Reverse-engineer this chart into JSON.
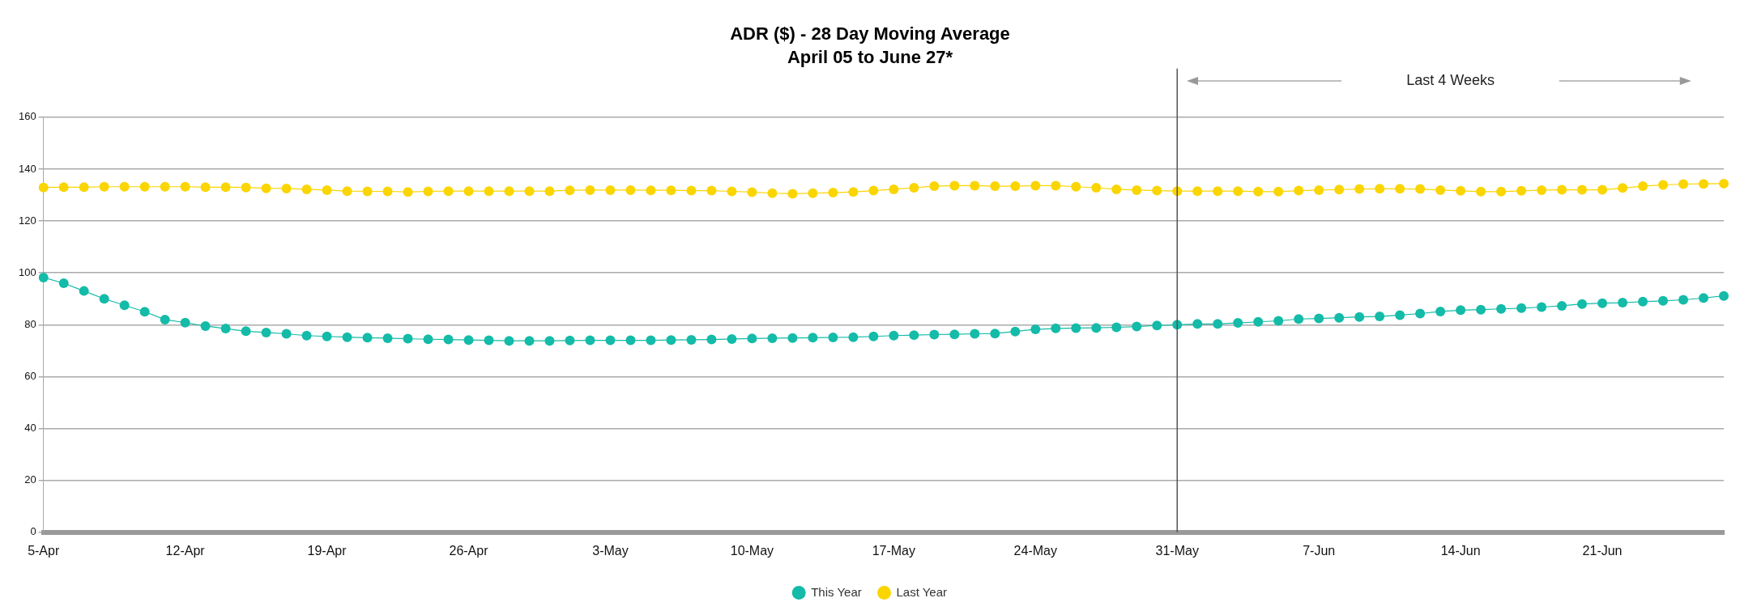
{
  "chart_data": {
    "type": "line",
    "title": "ADR ($) - 28 Day Moving Average",
    "subtitle": "April 05 to June 27*",
    "categories": [
      "5-Apr",
      null,
      null,
      null,
      null,
      null,
      null,
      "12-Apr",
      null,
      null,
      null,
      null,
      null,
      null,
      "19-Apr",
      null,
      null,
      null,
      null,
      null,
      null,
      "26-Apr",
      null,
      null,
      null,
      null,
      null,
      null,
      "3-May",
      null,
      null,
      null,
      null,
      null,
      null,
      "10-May",
      null,
      null,
      null,
      null,
      null,
      null,
      "17-May",
      null,
      null,
      null,
      null,
      null,
      null,
      "24-May",
      null,
      null,
      null,
      null,
      null,
      null,
      "31-May",
      null,
      null,
      null,
      null,
      null,
      null,
      "7-Jun",
      null,
      null,
      null,
      null,
      null,
      null,
      "14-Jun",
      null,
      null,
      null,
      null,
      null,
      null,
      "21-Jun",
      null,
      null,
      null,
      null,
      null,
      null
    ],
    "series": [
      {
        "name": "This Year",
        "color": "#13bba8",
        "values": [
          98.2,
          96,
          93,
          90,
          87.5,
          85,
          82,
          80.8,
          79.5,
          78.5,
          77.5,
          77,
          76.5,
          75.8,
          75.5,
          75.2,
          75,
          74.8,
          74.6,
          74.4,
          74.3,
          74.1,
          74,
          73.8,
          73.8,
          73.8,
          73.9,
          74,
          74,
          74,
          74,
          74.1,
          74.2,
          74.3,
          74.5,
          74.7,
          74.8,
          74.9,
          75,
          75.1,
          75.2,
          75.5,
          75.8,
          76,
          76.2,
          76.3,
          76.5,
          76.6,
          77.4,
          78.2,
          78.6,
          78.7,
          78.8,
          79,
          79.3,
          79.7,
          80,
          80.3,
          80.3,
          80.7,
          81.1,
          81.5,
          82.2,
          82.4,
          82.7,
          83,
          83.2,
          83.7,
          84.3,
          85.1,
          85.6,
          85.8,
          86.1,
          86.4,
          86.8,
          87.3,
          88,
          88.3,
          88.5,
          88.9,
          89.2,
          89.6,
          90.3,
          91.1
        ]
      },
      {
        "name": "Last Year",
        "color": "#fad500",
        "values": [
          132.9,
          133,
          133,
          133.2,
          133.2,
          133.2,
          133.2,
          133.2,
          133,
          133,
          132.9,
          132.6,
          132.5,
          132.2,
          131.9,
          131.5,
          131.4,
          131.4,
          131.2,
          131.4,
          131.5,
          131.5,
          131.5,
          131.5,
          131.5,
          131.5,
          131.8,
          131.9,
          131.9,
          131.9,
          131.8,
          131.8,
          131.7,
          131.7,
          131.4,
          131.1,
          130.7,
          130.5,
          130.7,
          130.9,
          131.2,
          131.7,
          132.2,
          132.8,
          133.4,
          133.6,
          133.6,
          133.4,
          133.4,
          133.6,
          133.6,
          133.2,
          132.8,
          132.2,
          131.9,
          131.7,
          131.5,
          131.5,
          131.5,
          131.5,
          131.3,
          131.3,
          131.7,
          131.9,
          132.1,
          132.3,
          132.4,
          132.4,
          132.3,
          131.9,
          131.6,
          131.3,
          131.3,
          131.6,
          131.9,
          132,
          132,
          132,
          132.7,
          133.4,
          133.9,
          134.2,
          134.3,
          134.4
        ]
      }
    ],
    "ylim": [
      0,
      160
    ],
    "yticks": [
      0,
      20,
      40,
      60,
      80,
      100,
      120,
      140,
      160
    ],
    "grid": "y",
    "legend": "bottom",
    "marker": "circle",
    "line_style": "solid",
    "annotations": [
      "Last 4 Weeks"
    ],
    "ref_lines": [
      {
        "axis": "x",
        "value": "31-May",
        "color": "#555555"
      }
    ]
  }
}
